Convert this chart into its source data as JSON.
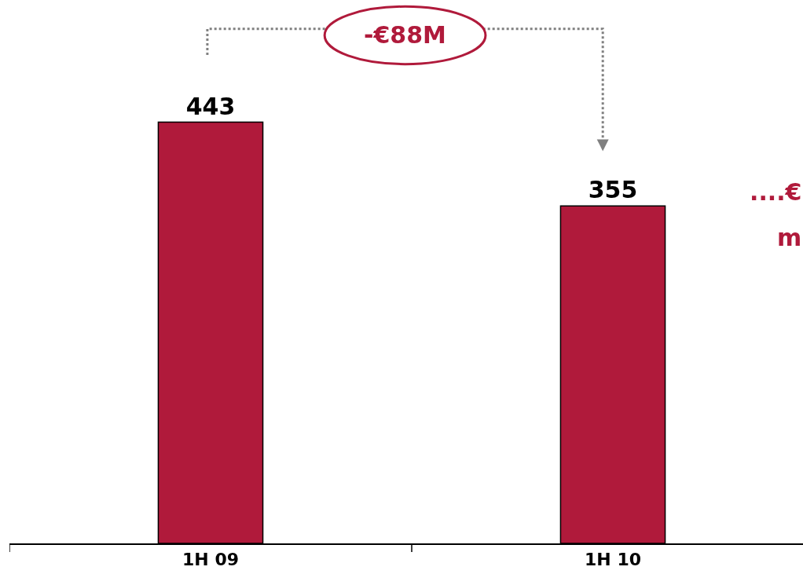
{
  "chart_data": {
    "type": "bar",
    "categories": [
      "1H 09",
      "1H 10"
    ],
    "values": [
      443,
      355
    ],
    "color": "#b01a3b",
    "data_labels": true,
    "legend": false,
    "annotations": [
      "-€88M",
      "....€",
      "m"
    ]
  }
}
